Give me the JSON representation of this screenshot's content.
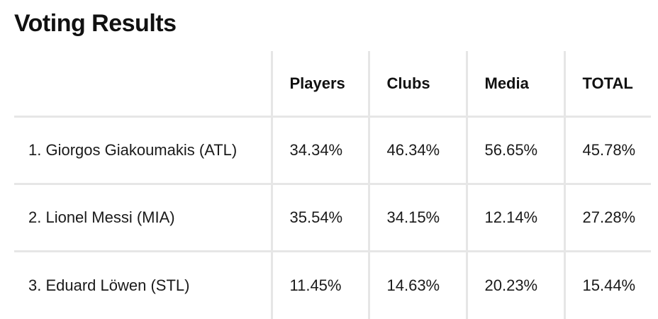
{
  "title": "Voting Results",
  "table": {
    "headers": [
      "",
      "Players",
      "Clubs",
      "Media",
      "TOTAL"
    ],
    "rows": [
      [
        "1. Giorgos Giakoumakis (ATL)",
        "34.34%",
        "46.34%",
        "56.65%",
        "45.78%"
      ],
      [
        "2. Lionel Messi (MIA)",
        "35.54%",
        "34.15%",
        "12.14%",
        "27.28%"
      ],
      [
        "3. Eduard Löwen (STL)",
        "11.45%",
        "14.63%",
        "20.23%",
        "15.44%"
      ]
    ]
  },
  "colors": {
    "text": "#111111",
    "divider": "#e6e6e6",
    "background": "#ffffff"
  }
}
